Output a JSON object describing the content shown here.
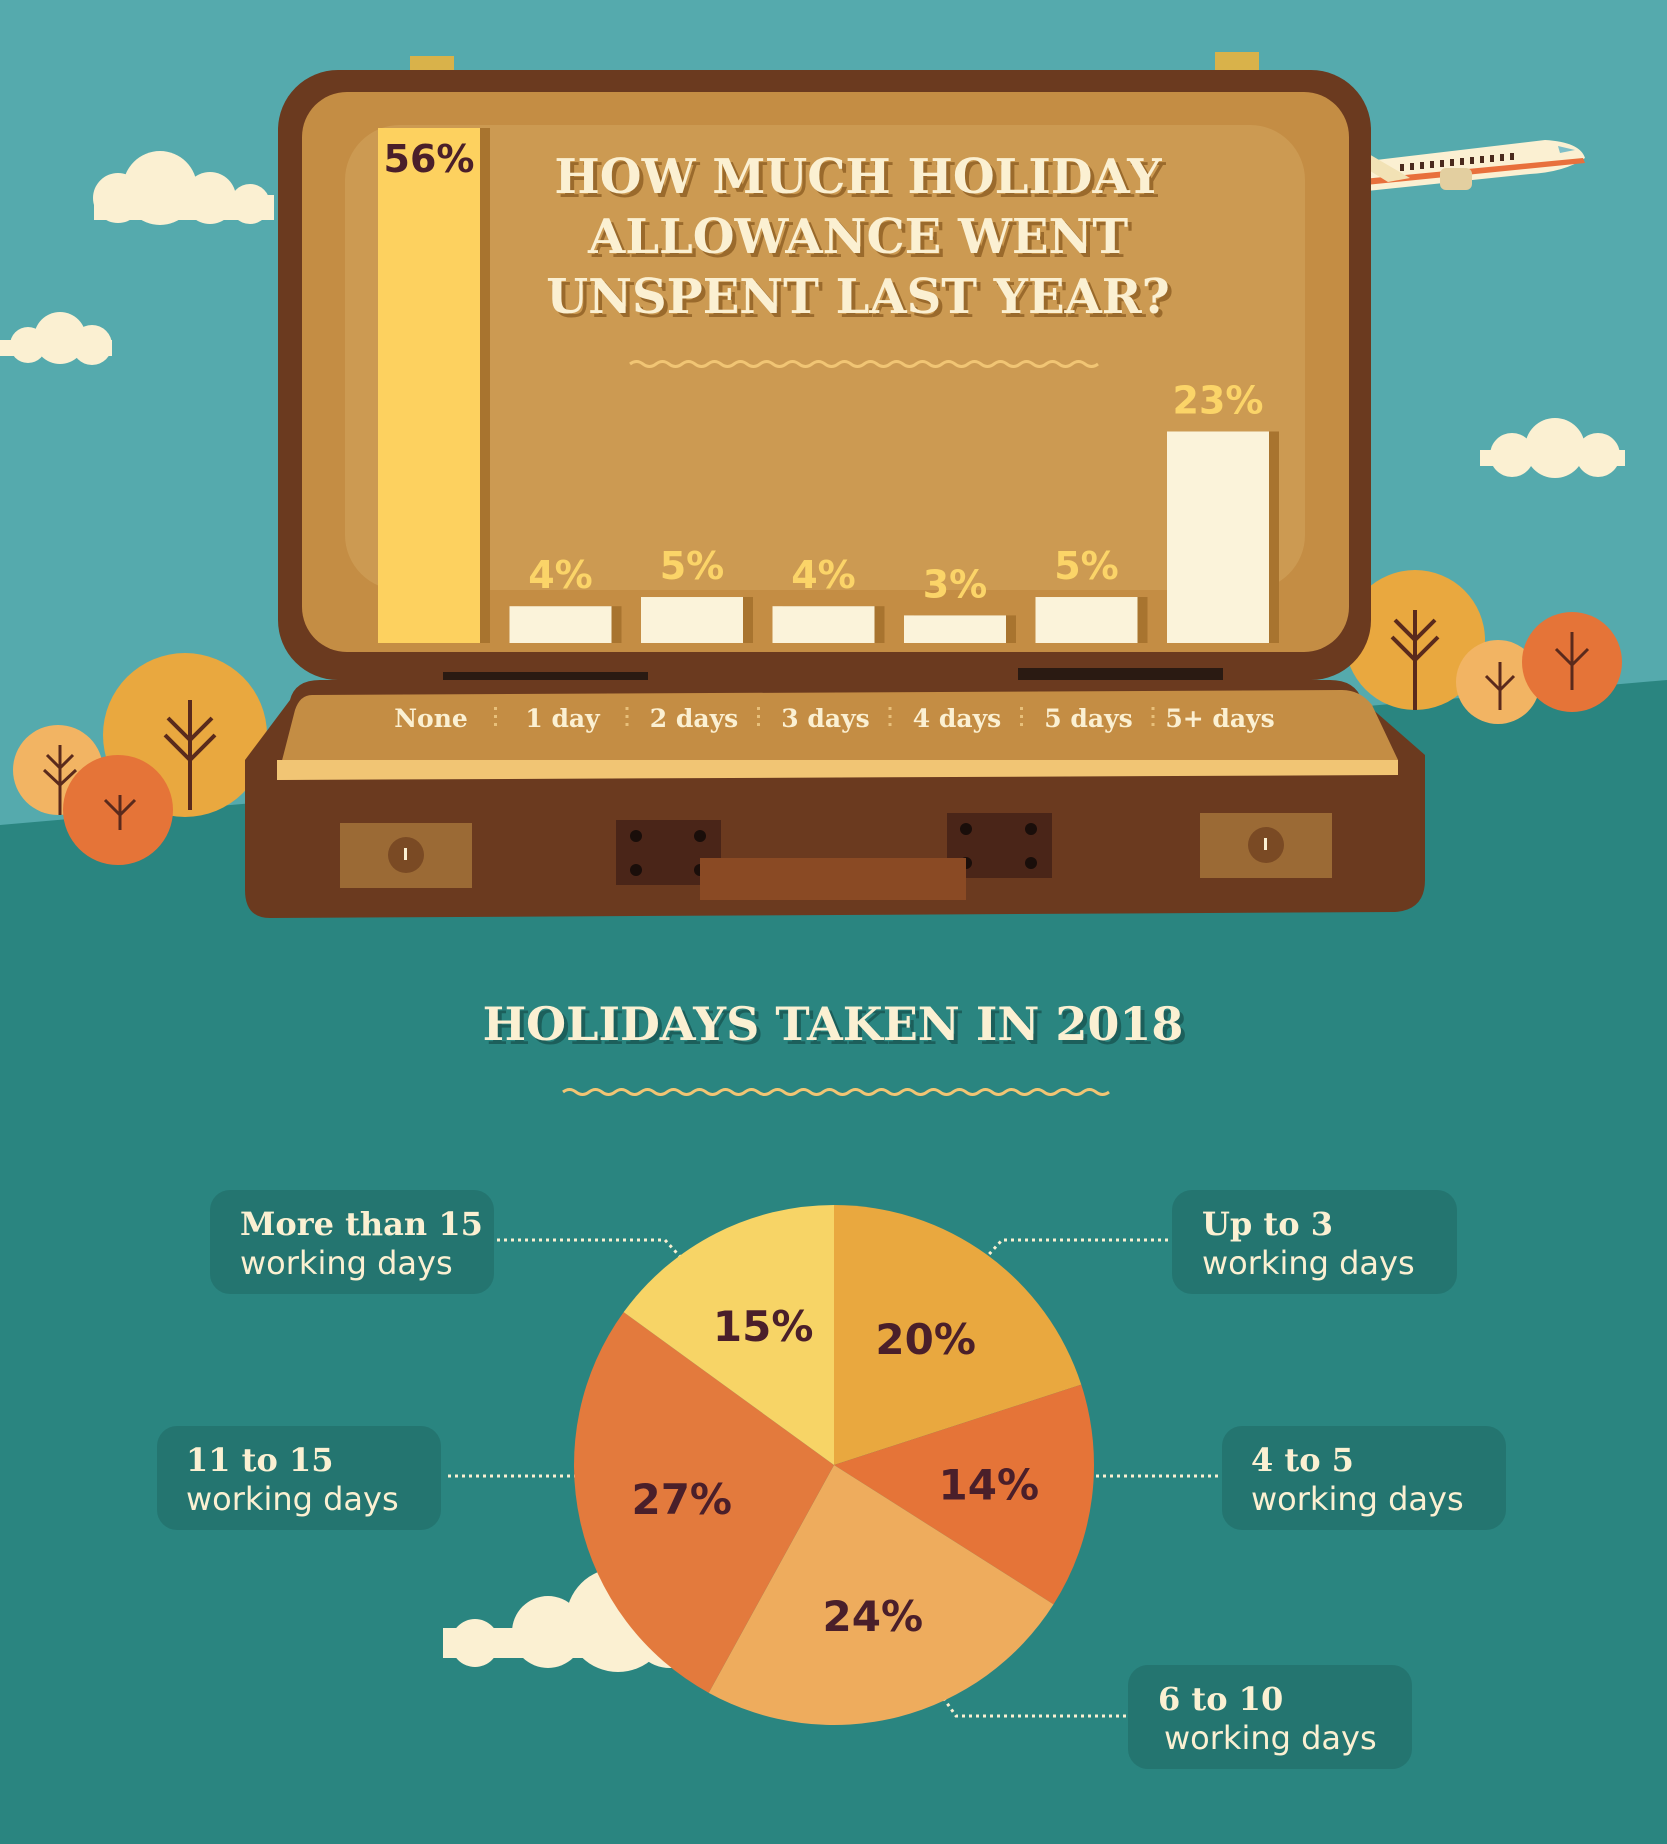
{
  "colors": {
    "sky": "#55aaad",
    "ground": "#2a8580",
    "case_outer": "#6b3a1f",
    "case_inner": "#c48d44",
    "bar_highlight": "#fdd15f",
    "bar_default": "#fbf3da",
    "label_box": "#247570",
    "cream": "#fbf0d2"
  },
  "bar_chart": {
    "title_lines": [
      "HOW MUCH HOLIDAY",
      "ALLOWANCE WENT",
      "UNSPENT LAST YEAR?"
    ],
    "value_labels": [
      "56%",
      "4%",
      "5%",
      "4%",
      "3%",
      "5%",
      "23%"
    ]
  },
  "pie_chart": {
    "title": "HOLIDAYS TAKEN IN 2018",
    "slice_labels": [
      "20%",
      "14%",
      "24%",
      "27%",
      "15%"
    ],
    "callouts": [
      {
        "line1": "Up to 3",
        "line2": "working days"
      },
      {
        "line1": "4 to 5",
        "line2": "working days"
      },
      {
        "line1": "6 to 10",
        "line2": "working days"
      },
      {
        "line1": "11 to 15",
        "line2": "working days"
      },
      {
        "line1": "More than 15",
        "line2": "working days"
      }
    ]
  },
  "chart_data": [
    {
      "type": "bar",
      "title": "HOW MUCH HOLIDAY ALLOWANCE WENT UNSPENT LAST YEAR?",
      "categories": [
        "None",
        "1 day",
        "2 days",
        "3 days",
        "4 days",
        "5 days",
        "5+ days"
      ],
      "values": [
        56,
        4,
        5,
        4,
        3,
        5,
        23
      ],
      "unit": "%",
      "highlight_index": 0
    },
    {
      "type": "pie",
      "title": "HOLIDAYS TAKEN IN 2018",
      "categories": [
        "Up to 3 working days",
        "4 to 5 working days",
        "6 to 10 working days",
        "11 to 15 working days",
        "More than 15 working days"
      ],
      "values": [
        20,
        14,
        24,
        27,
        15
      ],
      "unit": "%",
      "colors": [
        "#e9a83f",
        "#e57438",
        "#eeac5d",
        "#e37a3d",
        "#f7d466"
      ]
    }
  ]
}
